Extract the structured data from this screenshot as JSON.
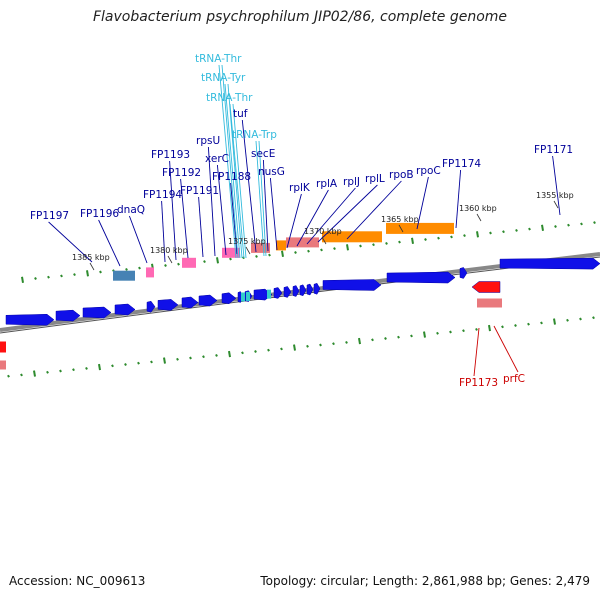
{
  "title": "Flavobacterium psychrophilum JIP02/86, complete genome",
  "footer": {
    "accession": "Accession: NC_009613",
    "summary": "Topology: circular; Length: 2,861,988 bp; Genes: 2,479"
  },
  "colors": {
    "cds": "#1010e8",
    "rrna": "#ff8c00",
    "trna": "#33cccc",
    "pseudo": "#ff69b4",
    "misc": "#e9797d",
    "reverse": "#ff1010",
    "label_blue": "#000099",
    "label_cyan": "#33bbdd",
    "label_red": "#cc0000",
    "tick": "#2e8b2e"
  },
  "kbp_labels": [
    "1385 kbp",
    "1380 kbp",
    "1375 kbp",
    "1370 kbp",
    "1365 kbp",
    "1360 kbp",
    "1355 kbp"
  ],
  "gene_labels_upper": [
    "FP1197",
    "FP1196",
    "dnaQ",
    "FP1194",
    "FP1193",
    "FP1192",
    "FP1191",
    "rpsU",
    "xerC",
    "FP1188",
    "tuf",
    "secE",
    "nusG",
    "rplK",
    "rplA",
    "rplJ",
    "rplL",
    "rpoB",
    "rpoC",
    "FP1174",
    "FP1171"
  ],
  "trna_labels": [
    "tRNA-Thr",
    "tRNA-Tyr",
    "tRNA-Thr",
    "tRNA-Trp"
  ],
  "gene_labels_lower": [
    "FP1173",
    "prfC"
  ]
}
